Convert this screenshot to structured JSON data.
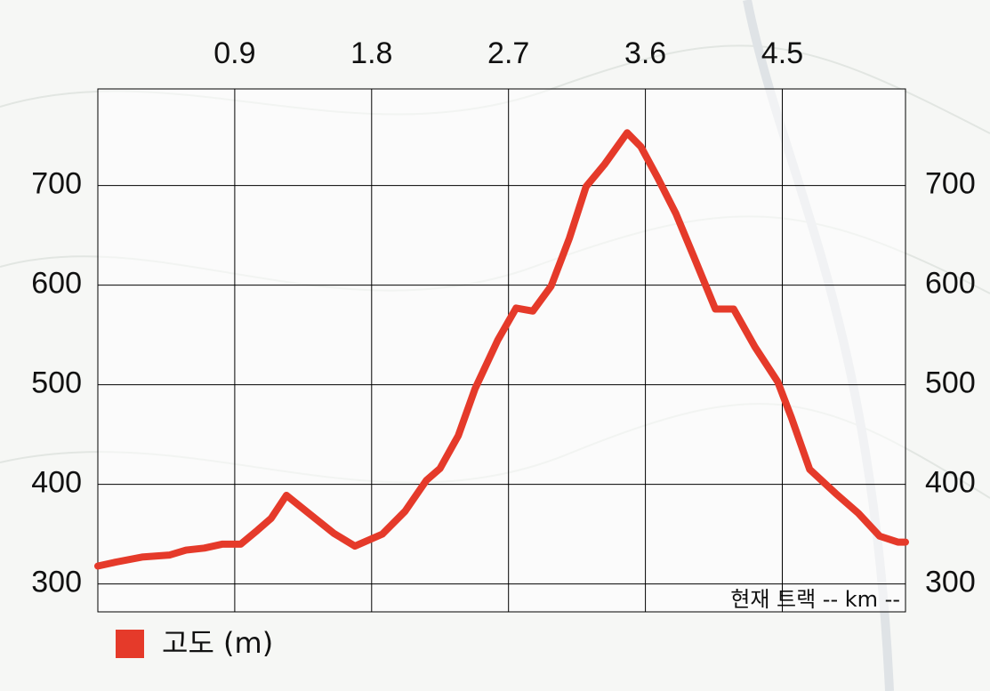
{
  "chart_data": {
    "type": "line",
    "x": [
      0,
      0.12,
      0.29,
      0.47,
      0.58,
      0.7,
      0.82,
      0.94,
      1.05,
      1.14,
      1.24,
      1.37,
      1.55,
      1.69,
      1.87,
      2.02,
      2.16,
      2.25,
      2.37,
      2.48,
      2.63,
      2.75,
      2.86,
      2.98,
      3.1,
      3.21,
      3.33,
      3.48,
      3.57,
      3.68,
      3.8,
      3.92,
      4.06,
      4.18,
      4.32,
      4.47,
      4.56,
      4.68,
      4.85,
      5.0,
      5.14,
      5.26,
      5.31
    ],
    "series": [
      {
        "name": "고도 (m)",
        "color": "#e53a2a",
        "values": [
          318,
          322,
          327,
          329,
          334,
          336,
          340,
          340,
          354,
          366,
          389,
          373,
          351,
          338,
          350,
          373,
          404,
          416,
          449,
          496,
          545,
          577,
          574,
          599,
          647,
          699,
          721,
          753,
          739,
          708,
          672,
          628,
          576,
          576,
          538,
          503,
          467,
          415,
          391,
          371,
          348,
          342,
          342
        ]
      }
    ],
    "xlim": [
      0,
      5.31
    ],
    "xticks": [
      0.9,
      1.8,
      2.7,
      3.6,
      4.5
    ],
    "ylim": [
      272,
      797
    ],
    "yticks": [
      300,
      400,
      500,
      600,
      700
    ],
    "grid": true,
    "legend": "bottom-left",
    "annotation": "현재 트랙 -- km --"
  }
}
